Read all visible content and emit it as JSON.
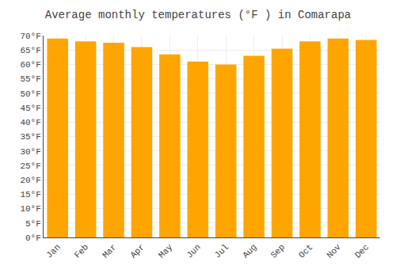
{
  "chart_data": {
    "type": "bar",
    "title": "Average monthly temperatures (°F ) in Comarapa",
    "categories": [
      "Jan",
      "Feb",
      "Mar",
      "Apr",
      "May",
      "Jun",
      "Jul",
      "Aug",
      "Sep",
      "Oct",
      "Nov",
      "Dec"
    ],
    "values": [
      69,
      68,
      67.5,
      66,
      63.5,
      61,
      60,
      63,
      65.5,
      68,
      69,
      68.5
    ],
    "color": "#FFA500",
    "ylim": [
      0,
      70
    ],
    "yticks": [
      {
        "value": 0,
        "label": "0°F"
      },
      {
        "value": 5,
        "label": "5°F"
      },
      {
        "value": 10,
        "label": "10°F"
      },
      {
        "value": 15,
        "label": "15°F"
      },
      {
        "value": 20,
        "label": "20°F"
      },
      {
        "value": 25,
        "label": "25°F"
      },
      {
        "value": 30,
        "label": "30°F"
      },
      {
        "value": 35,
        "label": "35°F"
      },
      {
        "value": 40,
        "label": "40°F"
      },
      {
        "value": 45,
        "label": "45°F"
      },
      {
        "value": 50,
        "label": "50°F"
      },
      {
        "value": 55,
        "label": "55°F"
      },
      {
        "value": 60,
        "label": "60°F"
      },
      {
        "value": 65,
        "label": "65°F"
      },
      {
        "value": 70,
        "label": "70°F"
      }
    ],
    "grid": true
  }
}
